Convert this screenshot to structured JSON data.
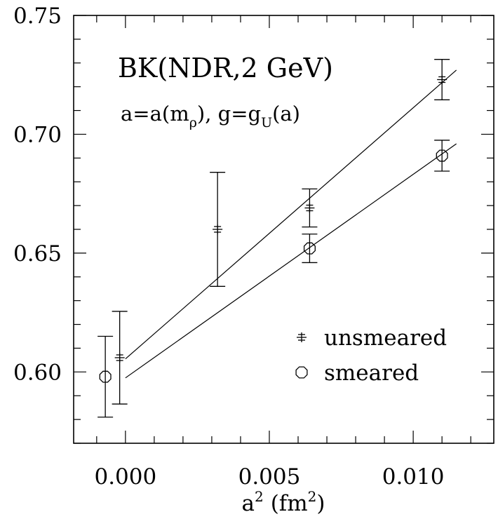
{
  "chart_data": {
    "type": "scatter",
    "title": "",
    "xlabel": "a",
    "xlabel_sup": "2",
    "xlabel_unit_open": "(fm",
    "xlabel_unit_sup": "2",
    "xlabel_unit_close": ")",
    "ylabel": "",
    "xlim": [
      -0.0018,
      0.0128
    ],
    "ylim": [
      0.57,
      0.75
    ],
    "xticks": [
      "0.000",
      "0.005",
      "0.010"
    ],
    "yticks": [
      "0.60",
      "0.65",
      "0.70",
      "0.75"
    ],
    "annotations": {
      "title_main": "BK(NDR,2 GeV)",
      "line2_a": "a=a(m",
      "line2_rho": "ρ",
      "line2_b": "),  g=g",
      "line2_u": "U",
      "line2_c": "(a)"
    },
    "legend": {
      "placement": "center-right"
    },
    "series": [
      {
        "name": "unsmeared",
        "marker": "cross",
        "points": [
          {
            "x": -0.0002,
            "y": 0.606,
            "yerr": 0.0195
          },
          {
            "x": 0.0032,
            "y": 0.66,
            "yerr": 0.024
          },
          {
            "x": 0.0064,
            "y": 0.669,
            "yerr": 0.008
          },
          {
            "x": 0.011,
            "y": 0.723,
            "yerr": 0.0085
          }
        ],
        "fit": {
          "x": [
            0.0,
            0.0115
          ],
          "y": [
            0.6055,
            0.727
          ]
        }
      },
      {
        "name": "smeared",
        "marker": "circle",
        "points": [
          {
            "x": -0.0007,
            "y": 0.598,
            "yerr": 0.017
          },
          {
            "x": 0.0064,
            "y": 0.652,
            "yerr": 0.006
          },
          {
            "x": 0.011,
            "y": 0.691,
            "yerr": 0.0065
          }
        ],
        "fit": {
          "x": [
            0.0,
            0.0115
          ],
          "y": [
            0.5975,
            0.696
          ]
        }
      }
    ]
  }
}
